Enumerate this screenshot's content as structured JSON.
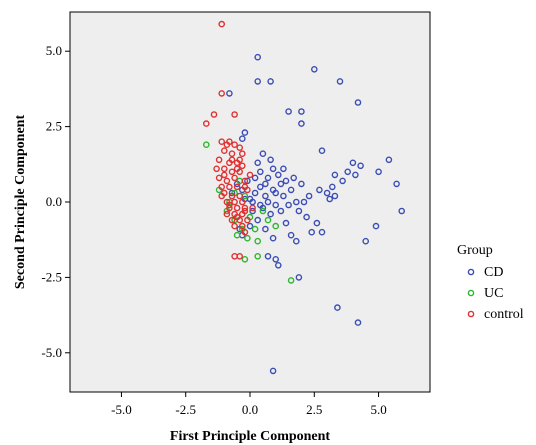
{
  "chart_data": {
    "type": "scatter",
    "xlabel": "First Principle Component",
    "ylabel": "Second Principle Component",
    "xlim": [
      -7,
      7
    ],
    "ylim": [
      -6.3,
      6.3
    ],
    "xticks": [
      -5,
      -2.5,
      0,
      2.5,
      5
    ],
    "xtick_labels": [
      "-5.0",
      "-2.5",
      "0.0",
      "2.5",
      "5.0"
    ],
    "yticks": [
      5,
      2.5,
      0,
      -2.5,
      -5
    ],
    "ytick_labels": [
      "5.0",
      "2.5",
      "0.0",
      "-2.5",
      "-5.0"
    ],
    "grid": false,
    "background": "#eeeeee",
    "legend": {
      "title": "Group",
      "position": "right"
    },
    "series": [
      {
        "name": "CD",
        "color": "#3b4db5",
        "points": [
          [
            0.3,
            4.8
          ],
          [
            0.3,
            4.0
          ],
          [
            0.8,
            4.0
          ],
          [
            2.5,
            4.4
          ],
          [
            3.5,
            4.0
          ],
          [
            4.2,
            3.3
          ],
          [
            1.5,
            3.0
          ],
          [
            2.0,
            3.0
          ],
          [
            2.0,
            2.6
          ],
          [
            -0.8,
            3.6
          ],
          [
            -0.2,
            2.3
          ],
          [
            -0.3,
            2.1
          ],
          [
            2.8,
            1.7
          ],
          [
            5.4,
            1.4
          ],
          [
            4.0,
            1.3
          ],
          [
            4.3,
            1.2
          ],
          [
            3.8,
            1.0
          ],
          [
            4.1,
            0.9
          ],
          [
            3.3,
            0.9
          ],
          [
            3.6,
            0.7
          ],
          [
            5.7,
            0.6
          ],
          [
            3.2,
            0.5
          ],
          [
            2.7,
            0.4
          ],
          [
            3.0,
            0.3
          ],
          [
            3.3,
            0.2
          ],
          [
            3.1,
            0.1
          ],
          [
            5.0,
            1.0
          ],
          [
            5.9,
            -0.3
          ],
          [
            4.9,
            -0.8
          ],
          [
            4.5,
            -1.3
          ],
          [
            3.4,
            -3.5
          ],
          [
            4.2,
            -4.0
          ],
          [
            0.9,
            -5.6
          ],
          [
            1.9,
            -2.5
          ],
          [
            1.1,
            -2.1
          ],
          [
            1.0,
            -1.9
          ],
          [
            0.7,
            -1.8
          ],
          [
            2.4,
            -1.0
          ],
          [
            2.8,
            -1.0
          ],
          [
            2.6,
            -0.7
          ],
          [
            2.2,
            -0.5
          ],
          [
            1.9,
            -0.3
          ],
          [
            1.6,
            -1.1
          ],
          [
            1.4,
            -0.7
          ],
          [
            1.8,
            -1.3
          ],
          [
            0.3,
            1.3
          ],
          [
            0.4,
            1.0
          ],
          [
            0.7,
            0.8
          ],
          [
            0.9,
            1.1
          ],
          [
            1.1,
            0.9
          ],
          [
            1.2,
            0.6
          ],
          [
            1.0,
            0.3
          ],
          [
            0.6,
            0.2
          ],
          [
            0.4,
            0.5
          ],
          [
            0.2,
            0.3
          ],
          [
            0.0,
            0.1
          ],
          [
            0.5,
            -0.2
          ],
          [
            0.8,
            -0.4
          ],
          [
            0.3,
            -0.6
          ],
          [
            0.1,
            -0.3
          ],
          [
            -0.2,
            0.1
          ],
          [
            -0.4,
            -0.9
          ],
          [
            -0.3,
            -1.1
          ],
          [
            0.0,
            -0.8
          ],
          [
            0.6,
            -0.9
          ],
          [
            1.3,
            0.2
          ],
          [
            1.6,
            0.4
          ],
          [
            1.8,
            0.0
          ],
          [
            2.1,
            0.0
          ],
          [
            1.5,
            -0.1
          ],
          [
            1.2,
            -0.3
          ],
          [
            0.9,
            0.4
          ],
          [
            0.6,
            0.6
          ],
          [
            0.2,
            0.8
          ],
          [
            -0.1,
            0.7
          ],
          [
            -0.3,
            0.4
          ],
          [
            0.1,
            0.0
          ],
          [
            0.4,
            -0.1
          ],
          [
            0.7,
            0.0
          ],
          [
            1.0,
            -0.1
          ],
          [
            1.4,
            0.7
          ],
          [
            1.7,
            0.8
          ],
          [
            2.0,
            0.6
          ],
          [
            2.3,
            0.2
          ],
          [
            0.5,
            1.6
          ],
          [
            0.8,
            1.4
          ],
          [
            1.3,
            1.1
          ],
          [
            -0.5,
            0.6
          ],
          [
            -0.7,
            0.3
          ],
          [
            0.9,
            -1.2
          ]
        ]
      },
      {
        "name": "UC",
        "color": "#2eb52e",
        "points": [
          [
            -1.7,
            1.9
          ],
          [
            -1.2,
            0.4
          ],
          [
            -0.8,
            0.0
          ],
          [
            -0.6,
            -0.6
          ],
          [
            -0.5,
            -1.1
          ],
          [
            -0.3,
            -0.9
          ],
          [
            -0.1,
            -1.2
          ],
          [
            0.2,
            -0.9
          ],
          [
            0.0,
            -0.5
          ],
          [
            0.3,
            -1.3
          ],
          [
            -0.2,
            -1.9
          ],
          [
            0.3,
            -1.8
          ],
          [
            0.7,
            -0.6
          ],
          [
            1.0,
            -0.8
          ],
          [
            -0.4,
            0.7
          ],
          [
            -0.6,
            0.3
          ],
          [
            0.5,
            -0.3
          ],
          [
            1.6,
            -2.6
          ],
          [
            -0.9,
            -0.3
          ],
          [
            -0.2,
            0.2
          ]
        ]
      },
      {
        "name": "control",
        "color": "#e03030",
        "points": [
          [
            -1.1,
            5.9
          ],
          [
            -1.7,
            2.6
          ],
          [
            -1.4,
            2.9
          ],
          [
            -1.1,
            3.6
          ],
          [
            -0.6,
            2.9
          ],
          [
            -1.1,
            2.0
          ],
          [
            -0.8,
            2.0
          ],
          [
            -0.6,
            1.9
          ],
          [
            -0.4,
            1.8
          ],
          [
            -1.0,
            1.7
          ],
          [
            -0.7,
            1.6
          ],
          [
            -0.3,
            1.6
          ],
          [
            -1.2,
            1.4
          ],
          [
            -0.8,
            1.3
          ],
          [
            -0.5,
            1.3
          ],
          [
            -1.0,
            1.1
          ],
          [
            -0.7,
            1.0
          ],
          [
            -0.4,
            1.0
          ],
          [
            -1.2,
            0.8
          ],
          [
            -0.9,
            0.7
          ],
          [
            -0.6,
            0.8
          ],
          [
            -1.1,
            0.5
          ],
          [
            -0.8,
            0.5
          ],
          [
            -0.5,
            0.5
          ],
          [
            -0.2,
            0.5
          ],
          [
            -1.0,
            0.3
          ],
          [
            -0.7,
            0.2
          ],
          [
            -0.4,
            0.2
          ],
          [
            -0.9,
            0.0
          ],
          [
            -0.6,
            0.0
          ],
          [
            -0.3,
            0.0
          ],
          [
            -0.8,
            -0.2
          ],
          [
            -0.5,
            -0.2
          ],
          [
            -0.2,
            -0.2
          ],
          [
            -0.9,
            -0.4
          ],
          [
            -0.6,
            -0.4
          ],
          [
            -0.3,
            -0.4
          ],
          [
            -0.7,
            -0.6
          ],
          [
            -0.4,
            -0.6
          ],
          [
            -0.1,
            -0.6
          ],
          [
            -0.6,
            -0.8
          ],
          [
            -0.3,
            -0.8
          ],
          [
            -0.2,
            -1.0
          ],
          [
            -0.4,
            -1.8
          ],
          [
            -0.6,
            -1.8
          ],
          [
            -1.3,
            1.1
          ],
          [
            -1.0,
            0.9
          ],
          [
            -0.3,
            1.2
          ],
          [
            0.0,
            0.9
          ],
          [
            -0.2,
            0.7
          ],
          [
            -1.1,
            0.2
          ],
          [
            -0.8,
            -0.1
          ],
          [
            -0.5,
            -0.5
          ],
          [
            -0.2,
            -0.3
          ],
          [
            0.1,
            -0.2
          ],
          [
            -0.7,
            1.4
          ],
          [
            -0.4,
            1.4
          ],
          [
            -0.9,
            1.9
          ],
          [
            -0.5,
            1.1
          ],
          [
            -0.1,
            0.4
          ]
        ]
      }
    ]
  }
}
